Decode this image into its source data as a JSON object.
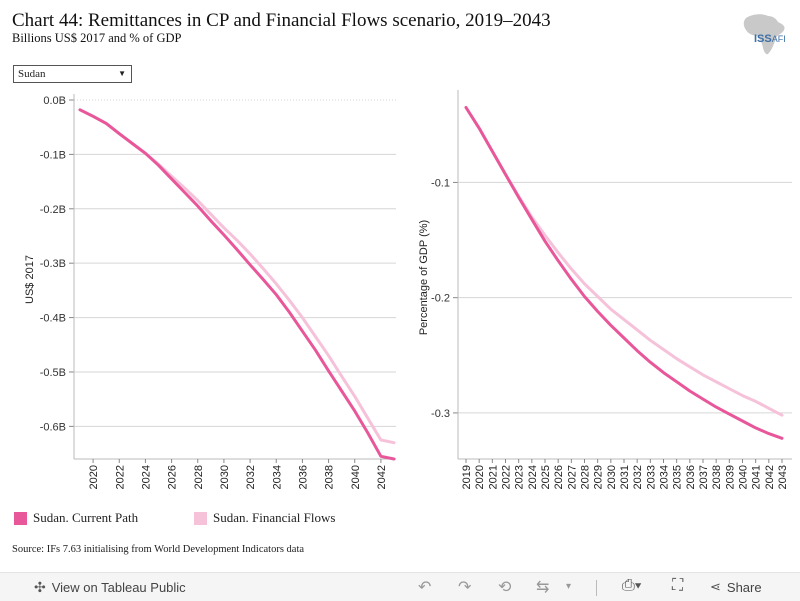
{
  "header": {
    "title": "Chart 44: Remittances in CP and Financial Flows scenario, 2019–2043",
    "subtitle": "Billions US$ 2017 and % of GDP"
  },
  "logo": {
    "text": "ISS",
    "sub": "AFI"
  },
  "filter": {
    "selected": "Sudan"
  },
  "legend": [
    {
      "label": "Sudan. Current Path",
      "color": "#e8579a"
    },
    {
      "label": "Sudan. Financial Flows",
      "color": "#f6c2da"
    }
  ],
  "source": "Source: IFs 7.63 initialising from World Development Indicators data",
  "toolbar": {
    "view_label": "View on Tableau Public",
    "share_label": "Share"
  },
  "chart_data": [
    {
      "type": "line",
      "ylabel": "US$ 2017",
      "xlabel": "",
      "ylim": [
        -0.66,
        0.0
      ],
      "yticks": [
        0.0,
        -0.1,
        -0.2,
        -0.3,
        -0.4,
        -0.5,
        -0.6
      ],
      "ytick_labels": [
        "0.0B",
        "-0.1B",
        "-0.2B",
        "-0.3B",
        "-0.4B",
        "-0.5B",
        "-0.6B"
      ],
      "x": [
        2019,
        2020,
        2021,
        2022,
        2023,
        2024,
        2025,
        2026,
        2027,
        2028,
        2029,
        2030,
        2031,
        2032,
        2033,
        2034,
        2035,
        2036,
        2037,
        2038,
        2039,
        2040,
        2041,
        2042,
        2043
      ],
      "xtick_labels": [
        "2020",
        "2022",
        "2024",
        "2026",
        "2028",
        "2030",
        "2032",
        "2034",
        "2036",
        "2038",
        "2040",
        "2042"
      ],
      "grid": true,
      "series": [
        {
          "name": "Sudan. Current Path",
          "color": "#e8579a",
          "values": [
            -0.018,
            -0.03,
            -0.043,
            -0.062,
            -0.08,
            -0.098,
            -0.12,
            -0.145,
            -0.17,
            -0.195,
            -0.222,
            -0.248,
            -0.275,
            -0.303,
            -0.33,
            -0.358,
            -0.39,
            -0.425,
            -0.46,
            -0.498,
            -0.535,
            -0.572,
            -0.612,
            -0.655,
            -0.66
          ]
        },
        {
          "name": "Sudan. Financial Flows",
          "color": "#f6c2da",
          "values": [
            -0.018,
            -0.03,
            -0.043,
            -0.062,
            -0.08,
            -0.098,
            -0.118,
            -0.14,
            -0.162,
            -0.185,
            -0.21,
            -0.235,
            -0.258,
            -0.283,
            -0.31,
            -0.338,
            -0.368,
            -0.4,
            -0.435,
            -0.47,
            -0.508,
            -0.545,
            -0.585,
            -0.625,
            -0.63
          ]
        }
      ]
    },
    {
      "type": "line",
      "ylabel": "Percentage of GDP (%)",
      "xlabel": "",
      "ylim": [
        -0.34,
        -0.025
      ],
      "yticks": [
        -0.1,
        -0.2,
        -0.3
      ],
      "ytick_labels": [
        "-0.1",
        "-0.2",
        "-0.3"
      ],
      "x": [
        2019,
        2020,
        2021,
        2022,
        2023,
        2024,
        2025,
        2026,
        2027,
        2028,
        2029,
        2030,
        2031,
        2032,
        2033,
        2034,
        2035,
        2036,
        2037,
        2038,
        2039,
        2040,
        2041,
        2042,
        2043
      ],
      "xtick_labels": [
        "2019",
        "2020",
        "2021",
        "2022",
        "2023",
        "2024",
        "2025",
        "2026",
        "2027",
        "2028",
        "2029",
        "2030",
        "2031",
        "2032",
        "2033",
        "2034",
        "2035",
        "2036",
        "2037",
        "2038",
        "2039",
        "2040",
        "2041",
        "2042",
        "2043"
      ],
      "grid": true,
      "series": [
        {
          "name": "Sudan. Current Path",
          "color": "#e8579a",
          "values": [
            -0.035,
            -0.053,
            -0.073,
            -0.093,
            -0.113,
            -0.132,
            -0.151,
            -0.168,
            -0.184,
            -0.199,
            -0.212,
            -0.224,
            -0.235,
            -0.246,
            -0.256,
            -0.265,
            -0.273,
            -0.281,
            -0.288,
            -0.295,
            -0.301,
            -0.307,
            -0.313,
            -0.318,
            -0.322
          ]
        },
        {
          "name": "Sudan. Financial Flows",
          "color": "#f6c2da",
          "values": [
            -0.035,
            -0.053,
            -0.073,
            -0.093,
            -0.112,
            -0.13,
            -0.146,
            -0.161,
            -0.175,
            -0.188,
            -0.199,
            -0.21,
            -0.219,
            -0.228,
            -0.237,
            -0.245,
            -0.253,
            -0.26,
            -0.267,
            -0.273,
            -0.279,
            -0.285,
            -0.29,
            -0.296,
            -0.302
          ]
        }
      ]
    }
  ]
}
